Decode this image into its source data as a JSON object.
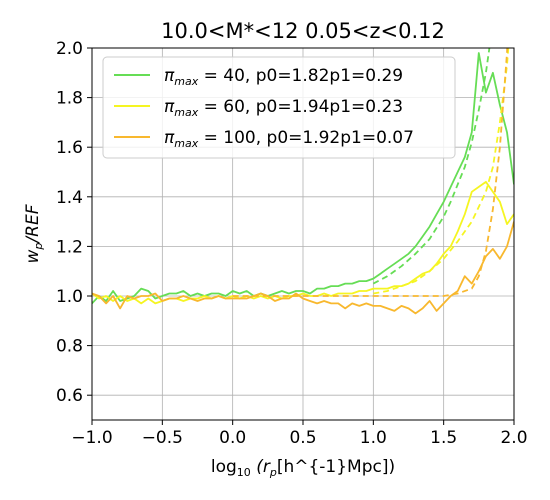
{
  "chart_data": {
    "type": "line",
    "title": "10.0<M*<12 0.05<z<0.12",
    "xlabel_prefix": "log",
    "xlabel_sub": "10",
    "xlabel_rest": " (r",
    "xlabel_p": "p",
    "xlabel_unit": "[h^{-1}Mpc])",
    "ylabel": "w",
    "ylabel_sub": "p",
    "ylabel_rest": "/REF",
    "xlim": [
      -1.0,
      2.0
    ],
    "ylim": [
      0.5,
      2.0
    ],
    "grid": true,
    "legend_position": "top-left",
    "x_ticks": [
      -1.0,
      -0.5,
      0.0,
      0.5,
      1.0,
      1.5,
      2.0
    ],
    "x_tick_labels": [
      "−1.0",
      "−0.5",
      "0.0",
      "0.5",
      "1.0",
      "1.5",
      "2.0"
    ],
    "y_ticks": [
      0.6,
      0.8,
      1.0,
      1.2,
      1.4,
      1.6,
      1.8,
      2.0
    ],
    "y_tick_labels": [
      "0.6",
      "0.8",
      "1.0",
      "1.2",
      "1.4",
      "1.6",
      "1.8",
      "2.0"
    ],
    "legend": [
      {
        "pi_sym": "π",
        "pi_sub": "max",
        "text": " = 40, p0=1.82p1=0.29",
        "color": "#66dd55"
      },
      {
        "pi_sym": "π",
        "pi_sub": "max",
        "text": " = 60, p0=1.94p1=0.23",
        "color": "#f5f522"
      },
      {
        "pi_sym": "π",
        "pi_sub": "max",
        "text": " = 100, p0=1.92p1=0.07",
        "color": "#f8b82e"
      }
    ],
    "series": [
      {
        "color": "#66dd55",
        "x": [
          -1.0,
          -0.95,
          -0.9,
          -0.85,
          -0.8,
          -0.75,
          -0.7,
          -0.65,
          -0.6,
          -0.55,
          -0.5,
          -0.45,
          -0.4,
          -0.35,
          -0.3,
          -0.25,
          -0.2,
          -0.15,
          -0.1,
          -0.05,
          0.0,
          0.05,
          0.1,
          0.15,
          0.2,
          0.25,
          0.3,
          0.35,
          0.4,
          0.45,
          0.5,
          0.55,
          0.6,
          0.65,
          0.7,
          0.75,
          0.8,
          0.85,
          0.9,
          0.95,
          1.0,
          1.05,
          1.1,
          1.15,
          1.2,
          1.25,
          1.3,
          1.35,
          1.4,
          1.45,
          1.5,
          1.55,
          1.6,
          1.65,
          1.7,
          1.75,
          1.8,
          1.85,
          1.9,
          1.95,
          2.0
        ],
        "y": [
          0.97,
          1.0,
          0.98,
          1.02,
          0.98,
          0.99,
          1.0,
          1.03,
          1.02,
          0.99,
          1.0,
          1.01,
          1.01,
          1.02,
          1.0,
          1.01,
          1.0,
          1.01,
          1.01,
          1.0,
          1.02,
          1.01,
          1.02,
          1.0,
          1.01,
          1.0,
          1.01,
          1.02,
          1.01,
          1.02,
          1.02,
          1.01,
          1.03,
          1.03,
          1.04,
          1.04,
          1.05,
          1.05,
          1.06,
          1.06,
          1.07,
          1.09,
          1.11,
          1.13,
          1.15,
          1.17,
          1.2,
          1.24,
          1.28,
          1.33,
          1.38,
          1.44,
          1.5,
          1.56,
          1.66,
          1.98,
          1.82,
          1.9,
          1.77,
          1.66,
          1.45
        ]
      },
      {
        "color": "#66dd55",
        "dashed": true,
        "x": [
          1.0,
          1.1,
          1.2,
          1.3,
          1.4,
          1.5,
          1.55,
          1.6,
          1.65,
          1.7,
          1.75,
          1.8,
          1.85,
          1.9
        ],
        "y": [
          1.05,
          1.08,
          1.12,
          1.17,
          1.23,
          1.32,
          1.38,
          1.45,
          1.52,
          1.62,
          1.75,
          1.9,
          2.1,
          2.4
        ]
      },
      {
        "color": "#f5f522",
        "x": [
          -1.0,
          -0.95,
          -0.9,
          -0.85,
          -0.8,
          -0.75,
          -0.7,
          -0.65,
          -0.6,
          -0.55,
          -0.5,
          -0.45,
          -0.4,
          -0.35,
          -0.3,
          -0.25,
          -0.2,
          -0.15,
          -0.1,
          -0.05,
          0.0,
          0.05,
          0.1,
          0.15,
          0.2,
          0.25,
          0.3,
          0.35,
          0.4,
          0.45,
          0.5,
          0.55,
          0.6,
          0.65,
          0.7,
          0.75,
          0.8,
          0.85,
          0.9,
          0.95,
          1.0,
          1.05,
          1.1,
          1.15,
          1.2,
          1.25,
          1.3,
          1.35,
          1.4,
          1.45,
          1.5,
          1.55,
          1.6,
          1.65,
          1.7,
          1.75,
          1.8,
          1.85,
          1.9,
          1.95,
          2.0
        ],
        "y": [
          1.01,
          0.99,
          1.0,
          0.98,
          1.0,
          0.98,
          0.99,
          0.97,
          0.99,
          0.97,
          0.98,
          0.99,
          0.99,
          0.98,
          0.99,
          0.99,
          1.0,
          0.99,
          1.0,
          0.99,
          1.0,
          0.99,
          1.0,
          0.99,
          1.0,
          0.99,
          1.0,
          0.99,
          1.0,
          1.0,
          1.01,
          1.0,
          1.0,
          1.01,
          1.0,
          1.01,
          1.01,
          1.01,
          1.02,
          1.02,
          1.03,
          1.03,
          1.03,
          1.04,
          1.04,
          1.05,
          1.07,
          1.09,
          1.1,
          1.13,
          1.17,
          1.2,
          1.26,
          1.33,
          1.42,
          1.44,
          1.46,
          1.42,
          1.38,
          1.29,
          1.33
        ]
      },
      {
        "color": "#f5f522",
        "dashed": true,
        "x": [
          1.0,
          1.1,
          1.2,
          1.3,
          1.4,
          1.5,
          1.6,
          1.7,
          1.8,
          1.85,
          1.9,
          1.95,
          2.0
        ],
        "y": [
          1.01,
          1.02,
          1.04,
          1.06,
          1.1,
          1.15,
          1.22,
          1.3,
          1.42,
          1.52,
          1.7,
          1.93,
          2.3
        ]
      },
      {
        "color": "#f8b82e",
        "x": [
          -1.0,
          -0.95,
          -0.9,
          -0.85,
          -0.8,
          -0.75,
          -0.7,
          -0.65,
          -0.6,
          -0.55,
          -0.5,
          -0.45,
          -0.4,
          -0.35,
          -0.3,
          -0.25,
          -0.2,
          -0.15,
          -0.1,
          -0.05,
          0.0,
          0.05,
          0.1,
          0.15,
          0.2,
          0.25,
          0.3,
          0.35,
          0.4,
          0.45,
          0.5,
          0.55,
          0.6,
          0.65,
          0.7,
          0.75,
          0.8,
          0.85,
          0.9,
          0.95,
          1.0,
          1.05,
          1.1,
          1.15,
          1.2,
          1.25,
          1.3,
          1.35,
          1.4,
          1.45,
          1.5,
          1.55,
          1.6,
          1.65,
          1.7,
          1.75,
          1.8,
          1.85,
          1.9,
          1.95,
          2.0
        ],
        "y": [
          1.01,
          1.0,
          0.97,
          1.0,
          0.95,
          1.0,
          0.99,
          1.0,
          1.0,
          1.01,
          0.98,
          0.99,
          0.99,
          1.0,
          0.99,
          0.98,
          0.99,
          0.99,
          1.0,
          0.99,
          0.99,
          0.99,
          0.99,
          1.0,
          1.01,
          1.0,
          0.98,
          0.99,
          0.99,
          1.01,
          0.99,
          0.98,
          0.97,
          0.98,
          0.97,
          0.97,
          0.95,
          0.97,
          0.96,
          0.97,
          0.96,
          0.96,
          0.95,
          0.94,
          0.96,
          0.95,
          0.93,
          0.95,
          0.98,
          0.94,
          0.97,
          1.0,
          1.02,
          1.08,
          1.05,
          1.1,
          1.16,
          1.19,
          1.15,
          1.2,
          1.3
        ]
      },
      {
        "color": "#f8b82e",
        "dashed": true,
        "x": [
          0.0,
          0.5,
          1.0,
          1.3,
          1.5,
          1.6,
          1.7,
          1.75,
          1.8,
          1.85,
          1.9,
          1.95,
          2.0
        ],
        "y": [
          1.0,
          1.0,
          1.0,
          1.0,
          1.0,
          1.01,
          1.03,
          1.08,
          1.18,
          1.35,
          1.6,
          1.98,
          2.6
        ]
      }
    ]
  }
}
